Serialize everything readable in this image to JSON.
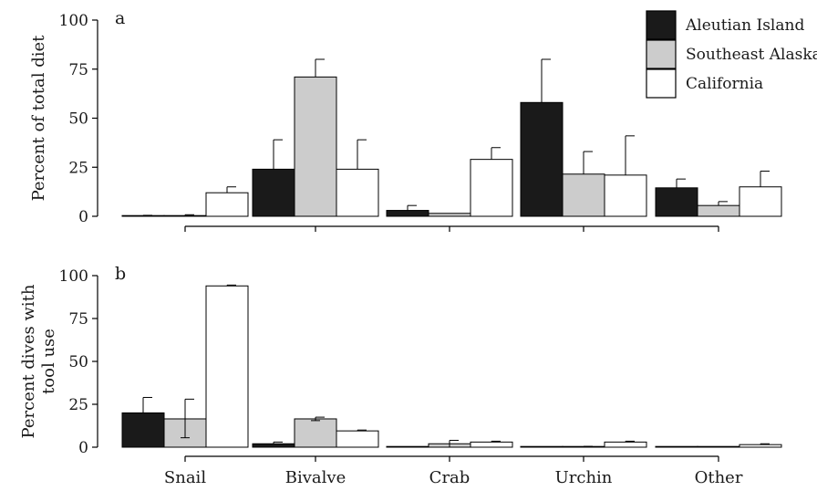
{
  "chart_data": [
    {
      "type": "bar",
      "panel_label": "a",
      "ylabel": "Percent of total diet",
      "ylim": [
        0,
        100
      ],
      "yticks": [
        0,
        25,
        50,
        75,
        100
      ],
      "categories": [
        "Snail",
        "Bivalve",
        "Crab",
        "Urchin",
        "Other"
      ],
      "show_category_labels": false,
      "series": [
        {
          "name": "Aleutian Island",
          "fill": "#1a1a1a",
          "values": [
            0,
            24,
            3,
            58,
            14.5
          ],
          "error_upper": [
            0.5,
            39,
            5.5,
            80,
            19
          ]
        },
        {
          "name": "Southeast Alaska",
          "fill": "#cccccc",
          "values": [
            0.3,
            71,
            1.5,
            21.5,
            5.5
          ],
          "error_upper": [
            0.8,
            80,
            1.5,
            33,
            7.5
          ]
        },
        {
          "name": "California",
          "fill": "#ffffff",
          "values": [
            12,
            24,
            29,
            21,
            15
          ],
          "error_upper": [
            15,
            39,
            35,
            41,
            23
          ]
        }
      ],
      "legend": "top-right",
      "grid": false
    },
    {
      "type": "bar",
      "panel_label": "b",
      "ylabel": "Percent dives with tool use",
      "ylim": [
        0,
        100
      ],
      "yticks": [
        0,
        25,
        50,
        75,
        100
      ],
      "categories": [
        "Snail",
        "Bivalve",
        "Crab",
        "Urchin",
        "Other"
      ],
      "show_category_labels": true,
      "series": [
        {
          "name": "Aleutian Island",
          "fill": "#1a1a1a",
          "values": [
            20,
            2,
            0,
            0,
            0
          ],
          "error_upper": [
            29,
            3,
            0,
            0,
            0
          ]
        },
        {
          "name": "Southeast Alaska",
          "fill": "#cccccc",
          "values": [
            16.5,
            16.5,
            2,
            0,
            0
          ],
          "error_upper": [
            28,
            17.5,
            4,
            0.5,
            0
          ],
          "error_lower": [
            5.5,
            15.5,
            0,
            0,
            0
          ]
        },
        {
          "name": "California",
          "fill": "#ffffff",
          "values": [
            94,
            9.5,
            3,
            3,
            1.5
          ],
          "error_upper": [
            94.5,
            10,
            3.5,
            3.5,
            2
          ]
        }
      ],
      "grid": false
    }
  ]
}
